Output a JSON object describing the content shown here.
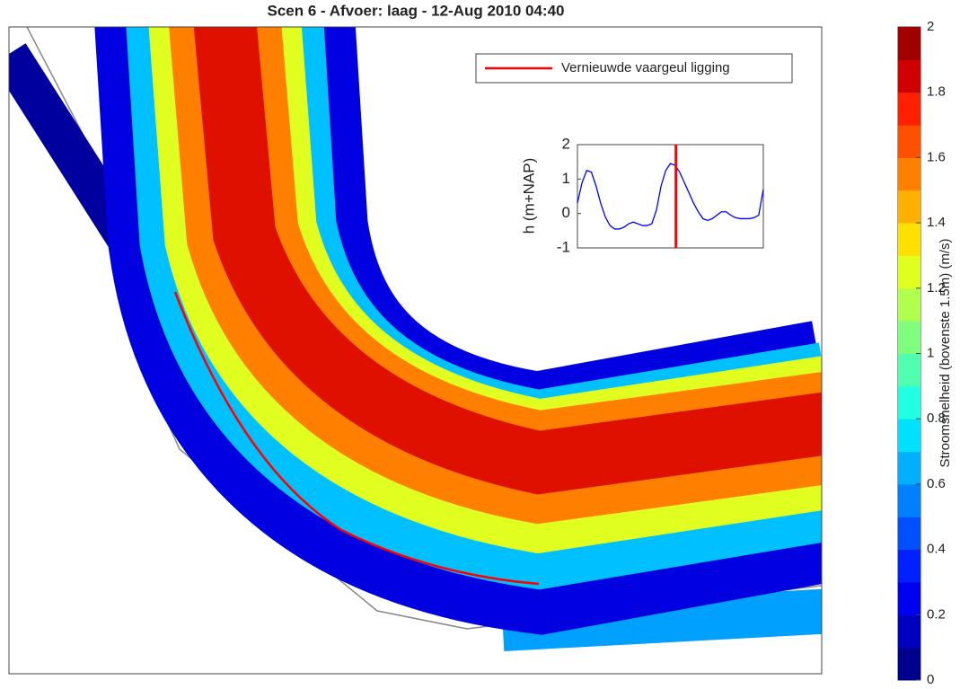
{
  "title": "Scen 6 - Afvoer: laag - 12-Aug 2010 04:40",
  "legend": {
    "label": "Vernieuwde vaargeul ligging",
    "color": "#ff0000"
  },
  "colorbar": {
    "label": "Stroomsnelheid (bovenste 1.5m) (m/s)",
    "lim": [
      0,
      2
    ],
    "ticks": [
      0,
      0.2,
      0.4,
      0.6,
      0.8,
      1,
      1.2,
      1.4,
      1.6,
      1.8,
      2
    ],
    "colors": [
      "#00008f",
      "#0000c0",
      "#0000f0",
      "#0020ff",
      "#0050ff",
      "#0080ff",
      "#00b0ff",
      "#00e0ff",
      "#20ffdf",
      "#50ffaf",
      "#80ff7f",
      "#b0ff4f",
      "#e0ff1f",
      "#ffe000",
      "#ffb000",
      "#ff8000",
      "#ff5000",
      "#ff2000",
      "#d00000",
      "#a00000"
    ]
  },
  "chart_data": {
    "type": "line",
    "ylabel": "h (m+NAP)",
    "ylim": [
      -1,
      2
    ],
    "yticks": [
      -1,
      0,
      1,
      2
    ],
    "xlim": [
      0,
      40
    ],
    "x": [
      0,
      1,
      2,
      3,
      4,
      5,
      6,
      7,
      8,
      9,
      10,
      11,
      12,
      13,
      14,
      15,
      16,
      17,
      18,
      19,
      20,
      21,
      22,
      23,
      24,
      25,
      26,
      27,
      28,
      29,
      30,
      31,
      32,
      33,
      34,
      35,
      36,
      37,
      38,
      39,
      40
    ],
    "series": [
      {
        "color": "#0000ff",
        "values": [
          0.3,
          0.9,
          1.25,
          1.2,
          0.8,
          0.3,
          -0.1,
          -0.35,
          -0.45,
          -0.45,
          -0.4,
          -0.3,
          -0.25,
          -0.3,
          -0.35,
          -0.35,
          -0.3,
          0.1,
          0.8,
          1.25,
          1.45,
          1.4,
          1.2,
          0.9,
          0.6,
          0.3,
          0.05,
          -0.15,
          -0.2,
          -0.15,
          -0.05,
          0.05,
          0.05,
          -0.05,
          -0.12,
          -0.15,
          -0.15,
          -0.15,
          -0.12,
          -0.05,
          0.7
        ]
      }
    ],
    "marker_x": 21.2,
    "marker_color": "#ff0000"
  }
}
